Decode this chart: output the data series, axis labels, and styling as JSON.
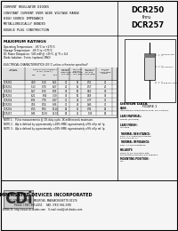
{
  "part_number": "DCR250",
  "thru": "thru",
  "part_number2": "DCR257",
  "header_lines": [
    "CURRENT REGULATOR DIODES",
    "CONSTANT CURRENT OVER WIDE VOLTAGE RANGE",
    "HIGH SOURCE IMPEDANCE",
    "METALLURGICALLY BONDED",
    "DOUBLE PLUG CONSTRUCTION"
  ],
  "max_ratings_title": "MAXIMUM RATINGS",
  "max_ratings": [
    "Operating Temperature:  -65°C to +175°C",
    "Storage Temperature:  -65°C to +175°C",
    "DC Power Dissipation:  500 mW @ +25°C, @ Tl = 0.4",
    "Diode Isolation:  0 min. (optional 1MΩ)"
  ],
  "elec_char_title": "ELECTRICAL CHARACTERISTICS (25°C unless otherwise specified)",
  "table_col_headers_row1": [
    "DEVICE",
    "REGULATOR CURRENT",
    "MINIMUM",
    "MAXIMUM",
    "MAX BULK",
    "CHANGE"
  ],
  "table_col_headers_row2": [
    "NUMBER",
    "In mA (Note 1)",
    "DYNAMIC",
    "DYNAMIC",
    "CURRENT",
    "IN Iz"
  ],
  "table_col_headers_row3": [
    "",
    "MIN   TYP   MAX",
    "IMPEDANCE",
    "IMPEDANCE",
    "CHANGE",
    "OVER TEMP"
  ],
  "table_col_headers_row4": [
    "",
    "",
    "rz Ω (Min)",
    "rz Ω (Max)",
    "ΔIp/Ip (Max)",
    "RANGE"
  ],
  "table_rows": [
    [
      "DCR250",
      "4.59",
      "5.10",
      "5.61",
      "40",
      "55",
      "0.51",
      "40"
    ],
    [
      "DCR251",
      "5.13",
      "5.70",
      "6.27",
      "40",
      "55",
      "0.57",
      "40"
    ],
    [
      "DCR252",
      "5.67",
      "6.30",
      "6.93",
      "35",
      "50",
      "0.63",
      "35"
    ],
    [
      "DCR253",
      "6.21",
      "6.90",
      "7.59",
      "35",
      "50",
      "0.69",
      "35"
    ],
    [
      "DCR254",
      "6.93",
      "7.70",
      "8.47",
      "30",
      "45",
      "0.77",
      "30"
    ],
    [
      "DCR255",
      "7.65",
      "8.50",
      "9.35",
      "30",
      "45",
      "0.85",
      "30"
    ],
    [
      "DCR256",
      "8.55",
      "9.50",
      "10.45",
      "25",
      "40",
      "0.95",
      "25"
    ],
    [
      "DCR257",
      "9.45",
      "10.50",
      "11.55",
      "25",
      "40",
      "1.05",
      "25"
    ]
  ],
  "notes": [
    "NOTE 1:   Pulse measurements @ 1% duty cycle, 1K milliseconds maximum.",
    "NOTE 2:   ΔIp is defined by approximately ±18% (MIN) approximately ±9% of Ip ref. Ip.",
    "NOTE 3:   ΔIp is defined by approximately ±18% (MIN) approximately ±9% of Ip ref. Ip."
  ],
  "design_data_title": "DESIGN DATA",
  "design_data": [
    [
      "CASE:",
      "Hermetically sealed glass case, DO-7 outline."
    ],
    [
      "LEAD MATERIAL:",
      "Dumet (not lined)"
    ],
    [
      "LEAD FINISH:",
      "Tin lined"
    ],
    [
      "THERMAL RESISTANCE:",
      "Pθj/C: 0.4°C/mW (MAX based\non 0.4 in 175°C)"
    ],
    [
      "THERMAL IMPEDANCE:",
      "Pθj/L: T+C/W resistance"
    ],
    [
      "POLARITY:",
      "Diode to be connected with\nthe banded (cathode) and negative."
    ],
    [
      "MOUNTING POSITION:",
      "Any"
    ]
  ],
  "figure_title": "FIGURE 1",
  "company_name": "COMPENSATED DEVICES INCORPORATED",
  "company_address": "21 COREY STREET   MELROSE, MASSACHUSETTS 02176",
  "company_phone": "Phone: (781) 665-4251",
  "company_fax": "FAX: (781) 665-3350",
  "company_website": "WEBSITE: http://www.cdi-diodes.com",
  "company_email": "E-mail: mail@cdi-diodes.com",
  "bg_color": "#f0f0f0",
  "section_bg": "#ffffff",
  "border_color": "#000000",
  "text_color": "#000000"
}
